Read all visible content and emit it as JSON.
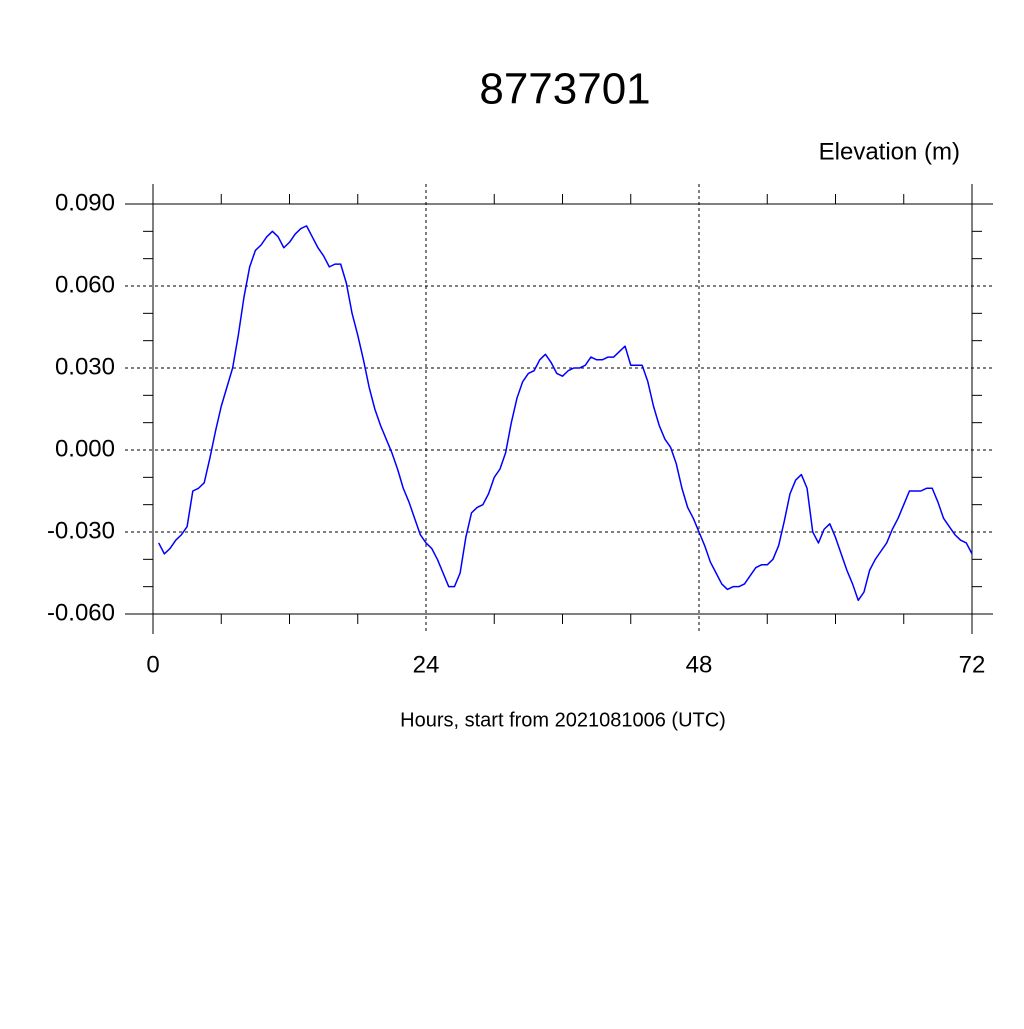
{
  "chart_data": {
    "type": "line",
    "title": "8773701",
    "subtitle": "Elevation (m)",
    "x_label": "Hours, start from 2021081006 (UTC)",
    "xlim": [
      0,
      72
    ],
    "ylim": [
      -0.06,
      0.09
    ],
    "xticks": [
      0,
      24,
      48,
      72
    ],
    "yticks": [
      {
        "value": -0.06,
        "label": "-0.060"
      },
      {
        "value": -0.03,
        "label": "-0.030"
      },
      {
        "value": 0,
        "label": "0.000"
      },
      {
        "value": 0.03,
        "label": "0.030"
      },
      {
        "value": 0.06,
        "label": "0.060"
      },
      {
        "value": 0.09,
        "label": "0.090"
      }
    ],
    "xminorticks": [
      6,
      12,
      18,
      30,
      36,
      42,
      54,
      60,
      66
    ],
    "yminorticks": [
      -0.05,
      -0.04,
      -0.02,
      -0.01,
      0.01,
      0.02,
      0.04,
      0.05,
      0.07,
      0.08
    ],
    "grid": true,
    "x": [
      0.5,
      1,
      1.5,
      2,
      2.5,
      3,
      3.5,
      4,
      4.5,
      5,
      5.5,
      6,
      6.5,
      7,
      7.5,
      8,
      8.5,
      9,
      9.5,
      10,
      10.5,
      11,
      11.5,
      12,
      12.5,
      13,
      13.5,
      14,
      14.5,
      15,
      15.5,
      16,
      16.5,
      17,
      17.5,
      18,
      18.5,
      19,
      19.5,
      20,
      20.5,
      21,
      21.5,
      22,
      22.5,
      23,
      23.5,
      24,
      24.5,
      25,
      25.5,
      26,
      26.5,
      27,
      27.5,
      28,
      28.5,
      29,
      29.5,
      30,
      30.5,
      31,
      31.5,
      32,
      32.5,
      33,
      33.5,
      34,
      34.5,
      35,
      35.5,
      36,
      36.5,
      37,
      37.5,
      38,
      38.5,
      39,
      39.5,
      40,
      40.5,
      41,
      41.5,
      42,
      42.5,
      43,
      43.5,
      44,
      44.5,
      45,
      45.5,
      46,
      46.5,
      47,
      47.5,
      48,
      48.5,
      49,
      49.5,
      50,
      50.5,
      51,
      51.5,
      52,
      52.5,
      53,
      53.5,
      54,
      54.5,
      55,
      55.5,
      56,
      56.5,
      57,
      57.5,
      58,
      58.5,
      59,
      59.5,
      60,
      60.5,
      61,
      61.5,
      62,
      62.5,
      63,
      63.5,
      64,
      64.5,
      65,
      65.5,
      66,
      66.5,
      67,
      67.5,
      68,
      68.5,
      69,
      69.5,
      70,
      70.5,
      71,
      71.5,
      72
    ],
    "series": [
      {
        "name": "Elevation",
        "color": "#0000ff",
        "values": [
          -0.034,
          -0.038,
          -0.036,
          -0.033,
          -0.031,
          -0.028,
          -0.015,
          -0.014,
          -0.012,
          -0.003,
          0.007,
          0.016,
          0.023,
          0.03,
          0.042,
          0.056,
          0.067,
          0.073,
          0.075,
          0.078,
          0.08,
          0.078,
          0.074,
          0.076,
          0.079,
          0.081,
          0.082,
          0.078,
          0.074,
          0.071,
          0.067,
          0.068,
          0.068,
          0.061,
          0.05,
          0.042,
          0.033,
          0.023,
          0.015,
          0.009,
          0.004,
          -0.001,
          -0.007,
          -0.014,
          -0.019,
          -0.025,
          -0.031,
          -0.034,
          -0.036,
          -0.04,
          -0.045,
          -0.05,
          -0.05,
          -0.045,
          -0.032,
          -0.023,
          -0.021,
          -0.02,
          -0.016,
          -0.01,
          -0.007,
          -0.001,
          0.01,
          0.019,
          0.025,
          0.028,
          0.029,
          0.033,
          0.035,
          0.032,
          0.028,
          0.027,
          0.029,
          0.03,
          0.03,
          0.031,
          0.034,
          0.033,
          0.033,
          0.034,
          0.034,
          0.036,
          0.038,
          0.031,
          0.031,
          0.031,
          0.025,
          0.016,
          0.009,
          0.004,
          0.001,
          -0.005,
          -0.014,
          -0.021,
          -0.025,
          -0.03,
          -0.035,
          -0.041,
          -0.045,
          -0.049,
          -0.051,
          -0.05,
          -0.05,
          -0.049,
          -0.046,
          -0.043,
          -0.042,
          -0.042,
          -0.04,
          -0.035,
          -0.026,
          -0.016,
          -0.011,
          -0.009,
          -0.014,
          -0.03,
          -0.034,
          -0.029,
          -0.027,
          -0.032,
          -0.038,
          -0.044,
          -0.049,
          -0.055,
          -0.052,
          -0.044,
          -0.04,
          -0.037,
          -0.034,
          -0.029,
          -0.025,
          -0.02,
          -0.015,
          -0.015,
          -0.015,
          -0.014,
          -0.014,
          -0.019,
          -0.025,
          -0.028,
          -0.031,
          -0.033,
          -0.034,
          -0.038
        ]
      }
    ]
  }
}
